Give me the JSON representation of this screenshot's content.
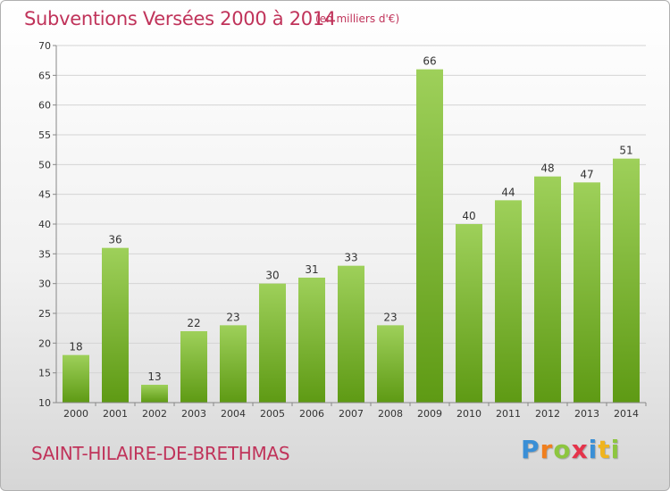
{
  "header": {
    "title": "Subventions Versées 2000 à 2014",
    "unit": "(en milliers d'€)"
  },
  "footer": {
    "commune": "SAINT-HILAIRE-DE-BRETHMAS",
    "logo": [
      "P",
      "r",
      "o",
      "x",
      "i",
      "t",
      "i"
    ],
    "logo_colors": [
      "#3a8fd6",
      "#f07f1e",
      "#8dc63f",
      "#e5334a",
      "#3a8fd6",
      "#f0b41e",
      "#8dc63f"
    ]
  },
  "colors": {
    "bar_top": "#9ed05a",
    "bar_bottom": "#5e9a14",
    "grid": "#d4d4d4",
    "axis": "#888888",
    "text": "#333333"
  },
  "chart_data": {
    "type": "bar",
    "categories": [
      "2000",
      "2001",
      "2002",
      "2003",
      "2004",
      "2005",
      "2006",
      "2007",
      "2008",
      "2009",
      "2010",
      "2011",
      "2012",
      "2013",
      "2014"
    ],
    "values": [
      18,
      36,
      13,
      22,
      23,
      30,
      31,
      33,
      23,
      66,
      40,
      44,
      48,
      47,
      51
    ],
    "ylim": [
      10,
      70
    ],
    "yticks": [
      10,
      15,
      20,
      25,
      30,
      35,
      40,
      45,
      50,
      55,
      60,
      65,
      70
    ],
    "grid": true,
    "title": "Subventions Versées 2000 à 2014",
    "xlabel": "",
    "ylabel": ""
  }
}
